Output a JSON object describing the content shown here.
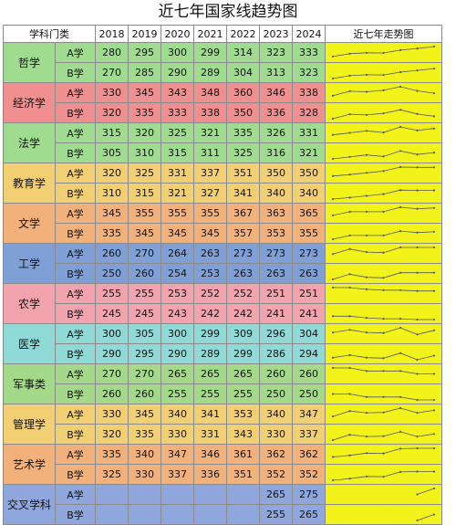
{
  "title": "近七年国家线趋势图",
  "header": {
    "category": "学科门类",
    "trend": "近七年走势图",
    "years": [
      "2018",
      "2019",
      "2020",
      "2021",
      "2022",
      "2023",
      "2024"
    ]
  },
  "rows": [
    {
      "name": "哲学",
      "color": "#9fdc8f",
      "lines": [
        {
          "label": "A学",
          "values": [
            "280",
            "295",
            "300",
            "299",
            "314",
            "323",
            "333"
          ]
        },
        {
          "label": "B学",
          "values": [
            "270",
            "285",
            "290",
            "289",
            "304",
            "313",
            "323"
          ]
        }
      ]
    },
    {
      "name": "经济学",
      "color": "#ef8f8f",
      "lines": [
        {
          "label": "A学",
          "values": [
            "330",
            "345",
            "343",
            "348",
            "360",
            "346",
            "338"
          ]
        },
        {
          "label": "B学",
          "values": [
            "320",
            "335",
            "333",
            "338",
            "350",
            "336",
            "328"
          ]
        }
      ]
    },
    {
      "name": "法学",
      "color": "#9fdc8f",
      "lines": [
        {
          "label": "A学",
          "values": [
            "315",
            "320",
            "325",
            "321",
            "335",
            "326",
            "331"
          ]
        },
        {
          "label": "B学",
          "values": [
            "305",
            "310",
            "315",
            "311",
            "325",
            "316",
            "321"
          ]
        }
      ]
    },
    {
      "name": "教育学",
      "color": "#f2cf73",
      "lines": [
        {
          "label": "A学",
          "values": [
            "320",
            "325",
            "331",
            "337",
            "351",
            "350",
            "350"
          ]
        },
        {
          "label": "B学",
          "values": [
            "310",
            "315",
            "321",
            "327",
            "341",
            "340",
            "340"
          ]
        }
      ]
    },
    {
      "name": "文学",
      "color": "#f2b07a",
      "lines": [
        {
          "label": "A学",
          "values": [
            "345",
            "355",
            "355",
            "355",
            "367",
            "363",
            "365"
          ]
        },
        {
          "label": "B学",
          "values": [
            "335",
            "345",
            "345",
            "345",
            "357",
            "353",
            "355"
          ]
        }
      ]
    },
    {
      "name": "工学",
      "color": "#7fa0d6",
      "lines": [
        {
          "label": "A学",
          "values": [
            "260",
            "270",
            "264",
            "263",
            "273",
            "273",
            "273"
          ]
        },
        {
          "label": "B学",
          "values": [
            "250",
            "260",
            "254",
            "253",
            "263",
            "263",
            "263"
          ]
        }
      ]
    },
    {
      "name": "农学",
      "color": "#f2a3ad",
      "lines": [
        {
          "label": "A学",
          "values": [
            "255",
            "255",
            "253",
            "252",
            "252",
            "251",
            "251"
          ]
        },
        {
          "label": "B学",
          "values": [
            "245",
            "245",
            "243",
            "242",
            "242",
            "241",
            "241"
          ]
        }
      ]
    },
    {
      "name": "医学",
      "color": "#8fd9d6",
      "lines": [
        {
          "label": "A学",
          "values": [
            "300",
            "305",
            "300",
            "299",
            "309",
            "296",
            "304"
          ]
        },
        {
          "label": "B学",
          "values": [
            "290",
            "295",
            "290",
            "289",
            "299",
            "286",
            "294"
          ]
        }
      ]
    },
    {
      "name": "军事类",
      "color": "#a4d98a",
      "lines": [
        {
          "label": "A学",
          "values": [
            "270",
            "270",
            "265",
            "265",
            "265",
            "260",
            "260"
          ]
        },
        {
          "label": "B学",
          "values": [
            "260",
            "260",
            "255",
            "255",
            "255",
            "250",
            "250"
          ]
        }
      ]
    },
    {
      "name": "管理学",
      "color": "#f2cf73",
      "lines": [
        {
          "label": "A学",
          "values": [
            "330",
            "345",
            "340",
            "341",
            "353",
            "340",
            "347"
          ]
        },
        {
          "label": "B学",
          "values": [
            "320",
            "335",
            "330",
            "331",
            "343",
            "330",
            "337"
          ]
        }
      ]
    },
    {
      "name": "艺术学",
      "color": "#f2b07a",
      "lines": [
        {
          "label": "A学",
          "values": [
            "335",
            "340",
            "347",
            "346",
            "361",
            "362",
            "362"
          ]
        },
        {
          "label": "B学",
          "values": [
            "325",
            "330",
            "337",
            "336",
            "351",
            "352",
            "352"
          ]
        }
      ]
    },
    {
      "name": "交叉学科",
      "color": "#8fa7dc",
      "lines": [
        {
          "label": "A学",
          "values": [
            "",
            "",
            "",
            "",
            "",
            "265",
            "275"
          ]
        },
        {
          "label": "B学",
          "values": [
            "",
            "",
            "",
            "",
            "",
            "255",
            "265"
          ]
        }
      ]
    }
  ],
  "colors": {
    "trend_bg": "#f3f31c",
    "line": "#555555"
  }
}
